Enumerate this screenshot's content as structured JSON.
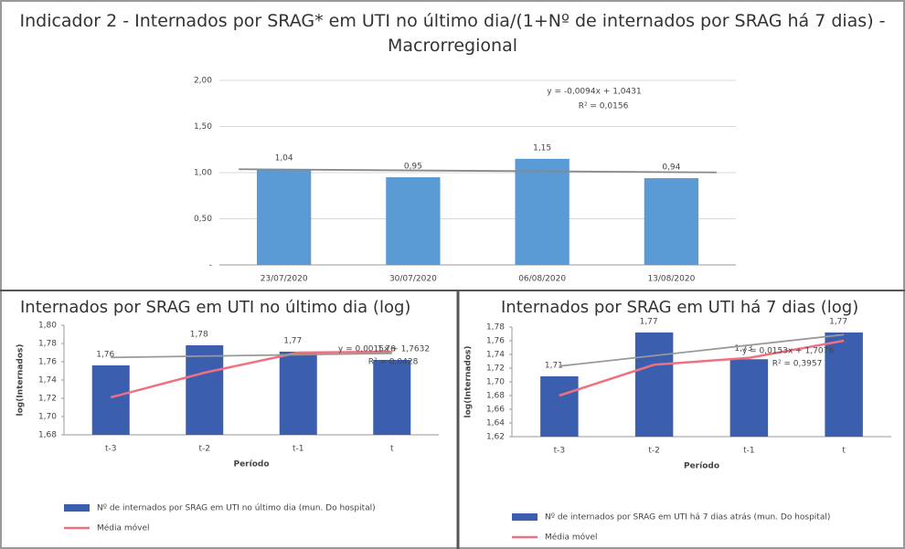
{
  "chart_data": [
    {
      "type": "bar",
      "title": "Indicador 2 - Internados por SRAG* em UTI no último dia/(1+Nº de internados por SRAG há 7 dias) - Macrorregional",
      "categories": [
        "23/07/2020",
        "30/07/2020",
        "06/08/2020",
        "13/08/2020"
      ],
      "values": [
        1.04,
        0.95,
        1.15,
        0.94
      ],
      "value_labels": [
        "1,04",
        "0,95",
        "1,15",
        "0,94"
      ],
      "color": "#5b9bd5",
      "ylim": [
        0,
        2
      ],
      "yticks": [
        {
          "value": 0,
          "label": "-"
        },
        {
          "value": 0.5,
          "label": "0,50"
        },
        {
          "value": 1,
          "label": "1,00"
        },
        {
          "value": 1.5,
          "label": "1,50"
        },
        {
          "value": 2,
          "label": "2,00"
        }
      ],
      "grid": true,
      "trendline": {
        "slope": -0.0094,
        "intercept": 1.0431,
        "label": "y = -0,0094x + 1,0431",
        "r2_label": "R² = 0,0156",
        "color": "#888888"
      }
    },
    {
      "type": "bar",
      "title": "Internados por SRAG em UTI no último dia (log)",
      "xlabel": "Período",
      "ylabel": "log(Internados)",
      "categories": [
        "t-3",
        "t-2",
        "t-1",
        "t"
      ],
      "series": [
        {
          "name": "Nº de internados por SRAG em UTI no último dia (mun. Do hospital)",
          "type": "bar",
          "color": "#3b5fae",
          "values": [
            1.756,
            1.778,
            1.771,
            1.762
          ],
          "value_labels": [
            "1,76",
            "1,78",
            "1,77",
            "1,76"
          ]
        },
        {
          "name": "Média móvel",
          "type": "line",
          "color": "#f07080",
          "values": [
            1.721,
            1.748,
            1.77,
            1.771
          ]
        }
      ],
      "ylim": [
        1.68,
        1.8
      ],
      "yticks": [
        {
          "value": 1.68,
          "label": "1,68"
        },
        {
          "value": 1.7,
          "label": "1,70"
        },
        {
          "value": 1.72,
          "label": "1,72"
        },
        {
          "value": 1.74,
          "label": "1,74"
        },
        {
          "value": 1.76,
          "label": "1,76"
        },
        {
          "value": 1.78,
          "label": "1,78"
        },
        {
          "value": 1.8,
          "label": "1,80"
        }
      ],
      "grid": false,
      "trendline": {
        "slope": 0.0015,
        "intercept": 1.7632,
        "label": "y = 0,0015x + 1,7632",
        "r2_label": "R² = 0,0428",
        "color": "#999999"
      }
    },
    {
      "type": "bar",
      "title": "Internados por SRAG em UTI há 7 dias (log)",
      "xlabel": "Período",
      "ylabel": "log(Internados)",
      "categories": [
        "t-3",
        "t-2",
        "t-1",
        "t"
      ],
      "series": [
        {
          "name": "Nº de internados por SRAG em UTI há 7 dias atrás (mun. Do hospital)",
          "type": "bar",
          "color": "#3b5fae",
          "values": [
            1.708,
            1.772,
            1.733,
            1.772
          ],
          "value_labels": [
            "1,71",
            "1,77",
            "1,73",
            "1,77"
          ]
        },
        {
          "name": "Média móvel",
          "type": "line",
          "color": "#f07080",
          "values": [
            1.68,
            1.725,
            1.735,
            1.76
          ]
        }
      ],
      "ylim": [
        1.62,
        1.78
      ],
      "yticks": [
        {
          "value": 1.62,
          "label": "1,62"
        },
        {
          "value": 1.64,
          "label": "1,64"
        },
        {
          "value": 1.66,
          "label": "1,66"
        },
        {
          "value": 1.68,
          "label": "1,68"
        },
        {
          "value": 1.7,
          "label": "1,70"
        },
        {
          "value": 1.72,
          "label": "1,72"
        },
        {
          "value": 1.74,
          "label": "1,74"
        },
        {
          "value": 1.76,
          "label": "1,76"
        },
        {
          "value": 1.78,
          "label": "1,78"
        }
      ],
      "grid": false,
      "trendline": {
        "slope": 0.0153,
        "intercept": 1.7076,
        "label": "y = 0,0153x + 1,7076",
        "r2_label": "R² = 0,3957",
        "color": "#999999"
      }
    }
  ]
}
